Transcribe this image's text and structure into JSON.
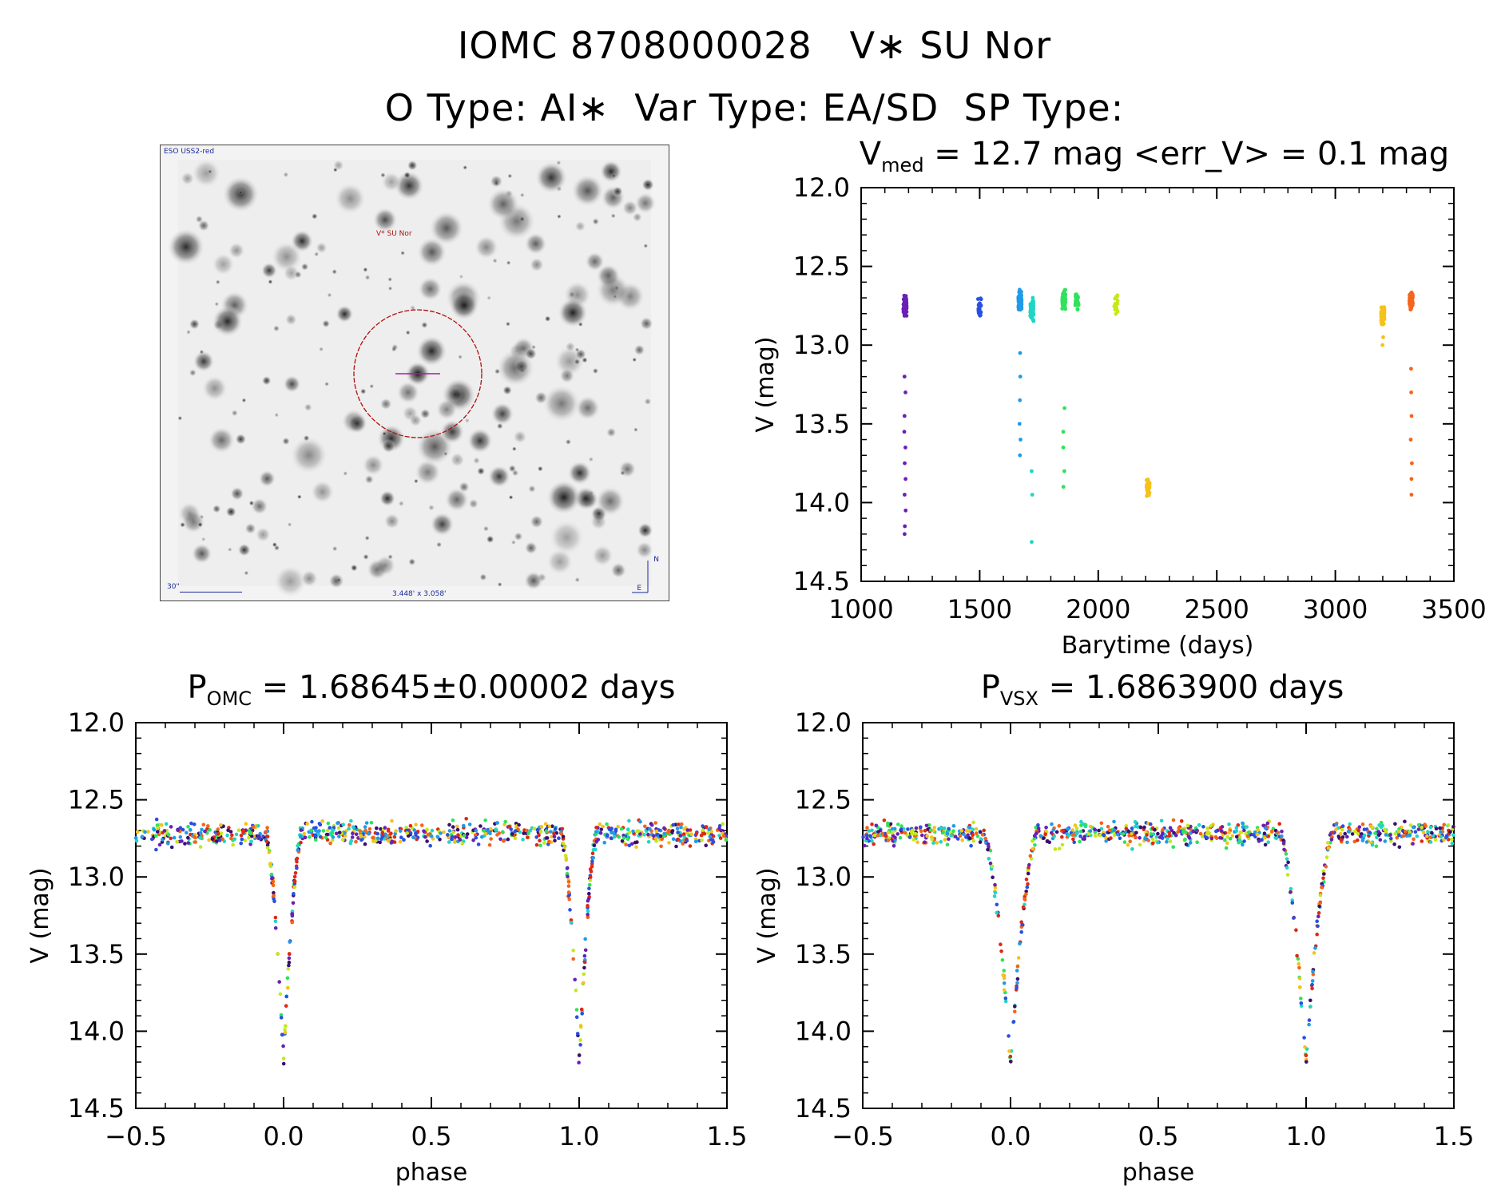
{
  "header": {
    "line1_id": "IOMC 8708000028",
    "line1_name": "V∗ SU Nor",
    "otype_label": "O Type: AI∗",
    "vartype_label": "Var Type: EA/SD",
    "sptype_label": "SP Type:"
  },
  "image_panel": {
    "survey": "ESO USS2-red",
    "target_label": "V* SU Nor",
    "scale_label": "30\"",
    "fov_label": "3.448' x 3.058'",
    "north_label": "N",
    "east_label": "E"
  },
  "colors": {
    "seasons": [
      "#3a0f6e",
      "#6a1fb4",
      "#2a4fe0",
      "#1f9be8",
      "#1fd6c4",
      "#2fe25a",
      "#c4e81a",
      "#f5c21a",
      "#f5641a",
      "#e02812"
    ]
  },
  "chart_data": [
    {
      "id": "lightcurve",
      "type": "scatter",
      "title_main": "V",
      "title_sub": "med",
      "title_rest": " = 12.7 mag <err_V> = 0.1 mag",
      "xlabel": "Barytime (days)",
      "ylabel": "V (mag)",
      "xlim": [
        1000,
        3500
      ],
      "ylim": [
        14.5,
        12.0
      ],
      "xticks": [
        1000,
        1500,
        2000,
        2500,
        3000,
        3500
      ],
      "xtick_labels": [
        "1000",
        "1500",
        "2000",
        "2500",
        "3000",
        "3500"
      ],
      "yticks": [
        12.0,
        12.5,
        13.0,
        13.5,
        14.0,
        14.5
      ],
      "ytick_labels": [
        "12.0",
        "12.5",
        "13.0",
        "13.5",
        "14.0",
        "14.5"
      ],
      "seasons": [
        {
          "x": 1185,
          "color_index": 1,
          "median": 12.75,
          "faint": [
            13.2,
            13.3,
            13.45,
            13.55,
            13.65,
            13.75,
            13.85,
            13.95,
            14.05,
            14.15,
            14.2
          ]
        },
        {
          "x": 1500,
          "color_index": 2,
          "median": 12.76,
          "faint": []
        },
        {
          "x": 1670,
          "color_index": 3,
          "median": 12.72,
          "faint": [
            13.05,
            13.2,
            13.35,
            13.5,
            13.6,
            13.7
          ]
        },
        {
          "x": 1720,
          "color_index": 4,
          "median": 12.78,
          "faint": [
            13.8,
            13.95,
            14.25
          ]
        },
        {
          "x": 1855,
          "color_index": 5,
          "median": 12.72,
          "faint": [
            13.4,
            13.55,
            13.65,
            13.8,
            13.9
          ]
        },
        {
          "x": 1910,
          "color_index": 5,
          "median": 12.72,
          "faint": []
        },
        {
          "x": 2075,
          "color_index": 6,
          "median": 12.74,
          "faint": []
        },
        {
          "x": 2210,
          "color_index": 7,
          "median": 13.9,
          "faint": []
        },
        {
          "x": 3200,
          "color_index": 7,
          "median": 12.8,
          "faint": [
            12.95,
            13.0
          ]
        },
        {
          "x": 3320,
          "color_index": 8,
          "median": 12.72,
          "faint": [
            13.15,
            13.3,
            13.45,
            13.6,
            13.75,
            13.85,
            13.95
          ]
        }
      ]
    },
    {
      "id": "phase-omc",
      "type": "scatter",
      "title_main": "P",
      "title_sub": "OMC",
      "title_rest": " = 1.68645±0.00002 days",
      "period_days": 1.68645,
      "xlabel": "phase",
      "ylabel": "V (mag)",
      "xlim": [
        -0.5,
        1.5
      ],
      "ylim": [
        14.5,
        12.0
      ],
      "xticks": [
        -0.5,
        0.0,
        0.5,
        1.0,
        1.5
      ],
      "xtick_labels": [
        "−0.5",
        "0.0",
        "0.5",
        "1.0",
        "1.5"
      ],
      "yticks": [
        12.0,
        12.5,
        13.0,
        13.5,
        14.0,
        14.5
      ],
      "ytick_labels": [
        "12.0",
        "12.5",
        "13.0",
        "13.5",
        "14.0",
        "14.5"
      ],
      "baseline_mag": 12.72,
      "primary_eclipse": {
        "phase": 0.0,
        "min_mag": 14.2,
        "half_width": 0.06
      },
      "dispersion_mag": 0.07
    },
    {
      "id": "phase-vsx",
      "type": "scatter",
      "title_main": "P",
      "title_sub": "VSX",
      "title_rest": " = 1.6863900 days",
      "period_days": 1.68639,
      "xlabel": "phase",
      "ylabel": "V (mag)",
      "xlim": [
        -0.5,
        1.5
      ],
      "ylim": [
        14.5,
        12.0
      ],
      "xticks": [
        -0.5,
        0.0,
        0.5,
        1.0,
        1.5
      ],
      "xtick_labels": [
        "−0.5",
        "0.0",
        "0.5",
        "1.0",
        "1.5"
      ],
      "yticks": [
        12.0,
        12.5,
        13.0,
        13.5,
        14.0,
        14.5
      ],
      "ytick_labels": [
        "12.0",
        "12.5",
        "13.0",
        "13.5",
        "14.0",
        "14.5"
      ],
      "baseline_mag": 12.72,
      "primary_eclipse": {
        "phase": 0.0,
        "min_mag": 14.2,
        "half_width": 0.09
      },
      "dispersion_mag": 0.07
    }
  ]
}
